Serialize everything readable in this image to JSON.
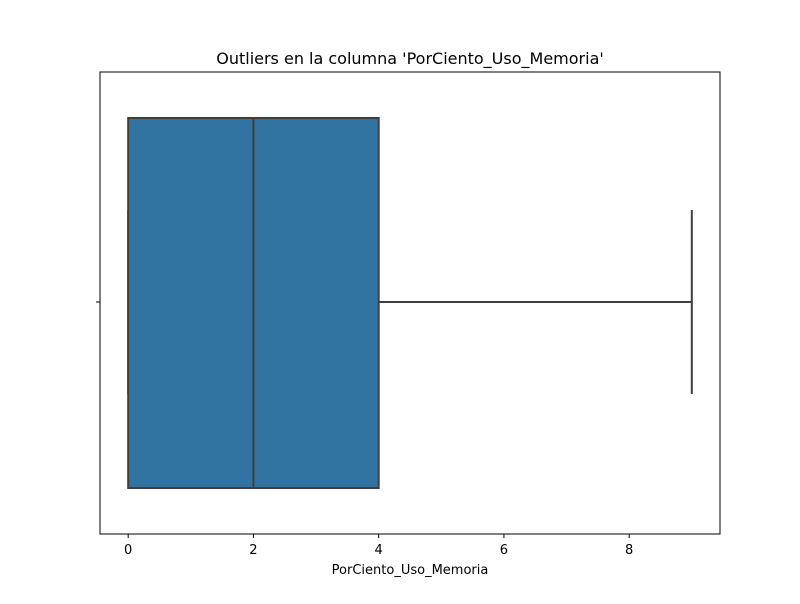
{
  "chart_data": {
    "type": "box",
    "title": "Outliers en la columna 'PorCiento_Uso_Memoria'",
    "xlabel": "PorCiento_Uso_Memoria",
    "ylabel": "",
    "orientation": "horizontal",
    "xlim": [
      -0.45,
      9.45
    ],
    "xticks": [
      0,
      2,
      4,
      6,
      8
    ],
    "xtick_labels": [
      "0",
      "2",
      "4",
      "6",
      "8"
    ],
    "grid": false,
    "box": {
      "whisker_low": 0,
      "q1": 0,
      "median": 2,
      "q3": 4,
      "whisker_high": 9,
      "outliers": []
    },
    "colors": {
      "box_fill": "#3274a1",
      "line": "#3f3f3f",
      "axis": "#000000"
    }
  }
}
